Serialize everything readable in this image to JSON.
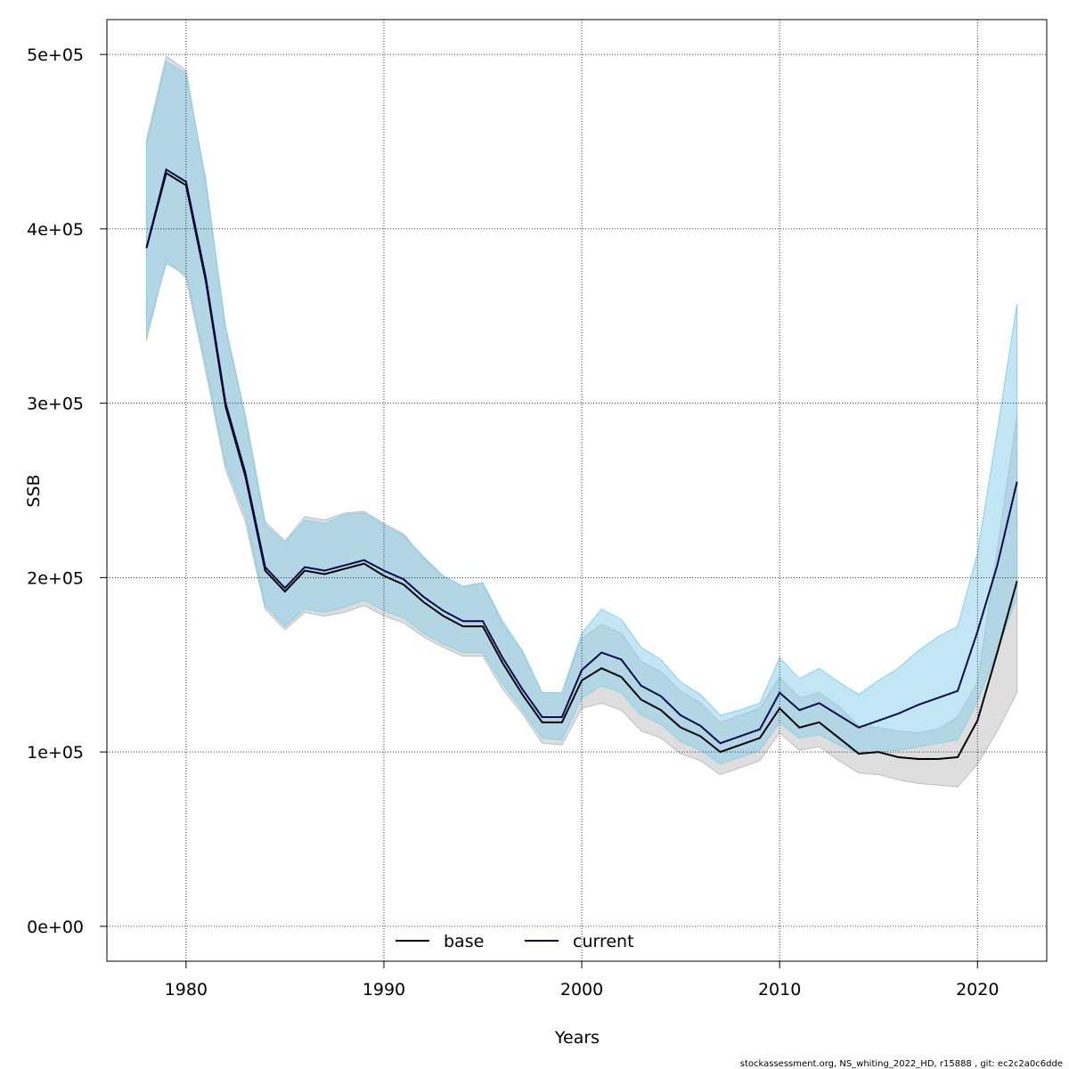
{
  "chart_data": {
    "type": "line",
    "xlabel": "Years",
    "ylabel": "SSB",
    "xlim": [
      1976,
      2023.5
    ],
    "ylim": [
      -20000,
      520000
    ],
    "xticks": [
      1980,
      1990,
      2000,
      2010,
      2020
    ],
    "yticks": [
      0,
      100000,
      200000,
      300000,
      400000,
      500000
    ],
    "ytick_labels": [
      "0e+00",
      "1e+05",
      "2e+05",
      "3e+05",
      "4e+05",
      "5e+05"
    ],
    "grid": true,
    "legend_position": "bottom",
    "x": [
      1978,
      1979,
      1980,
      1981,
      1982,
      1983,
      1984,
      1985,
      1986,
      1987,
      1988,
      1989,
      1990,
      1991,
      1992,
      1993,
      1994,
      1995,
      1996,
      1997,
      1998,
      1999,
      2000,
      2001,
      2002,
      2003,
      2004,
      2005,
      2006,
      2007,
      2008,
      2009,
      2010,
      2011,
      2012,
      2013,
      2014,
      2015,
      2016,
      2017,
      2018,
      2019,
      2020,
      2021,
      2022
    ],
    "series": [
      {
        "name": "base",
        "color": "#000000",
        "band_color": "#bebebe",
        "line_style": "solid",
        "values": [
          389000,
          432000,
          425000,
          370000,
          298000,
          258000,
          204000,
          192000,
          204000,
          202000,
          205000,
          208000,
          201000,
          196000,
          186000,
          178000,
          172000,
          172000,
          151000,
          133000,
          117000,
          117000,
          141000,
          148000,
          143000,
          130000,
          124000,
          114000,
          109000,
          100000,
          104000,
          108000,
          125000,
          114000,
          117000,
          108000,
          99000,
          100000,
          97000,
          96000,
          96000,
          97000,
          118000,
          157000,
          198000
        ],
        "lower": [
          336000,
          382000,
          372000,
          318000,
          262000,
          232000,
          182000,
          170000,
          180000,
          178000,
          180000,
          184000,
          178000,
          174000,
          166000,
          160000,
          155000,
          155000,
          136000,
          122000,
          105000,
          104000,
          125000,
          128000,
          124000,
          112000,
          108000,
          99000,
          95000,
          87000,
          91000,
          95000,
          111000,
          101000,
          103000,
          95000,
          88000,
          87000,
          84000,
          82000,
          81000,
          80000,
          93000,
          112000,
          134000
        ],
        "upper": [
          451000,
          499000,
          491000,
          426000,
          344000,
          293000,
          232000,
          221000,
          235000,
          233000,
          237000,
          238000,
          231000,
          225000,
          211000,
          201000,
          195000,
          197000,
          173000,
          157000,
          134000,
          134000,
          165000,
          173000,
          168000,
          152000,
          146000,
          135000,
          128000,
          117000,
          121000,
          125000,
          143000,
          131000,
          134000,
          126000,
          115000,
          114000,
          112000,
          111000,
          113000,
          120000,
          140000,
          216000,
          293000
        ]
      },
      {
        "name": "current",
        "color": "#00008b",
        "band_color": "#87ceeb",
        "line_style": "dotted",
        "values": [
          389000,
          434000,
          427000,
          372000,
          300000,
          260000,
          206000,
          194000,
          206000,
          204000,
          207000,
          210000,
          204000,
          199000,
          189000,
          181000,
          175000,
          175000,
          154000,
          136000,
          120000,
          120000,
          147000,
          157000,
          153000,
          138000,
          132000,
          121000,
          115000,
          105000,
          109000,
          113000,
          134000,
          124000,
          128000,
          121000,
          114000,
          118000,
          122000,
          127000,
          131000,
          135000,
          169000,
          207000,
          255000
        ],
        "lower": [
          340000,
          380000,
          374000,
          322000,
          265000,
          236000,
          184000,
          172000,
          182000,
          180000,
          183000,
          187000,
          181000,
          177000,
          168000,
          162000,
          157000,
          157000,
          139000,
          124000,
          108000,
          107000,
          131000,
          138000,
          134000,
          121000,
          116000,
          106000,
          101000,
          93000,
          97000,
          101000,
          117000,
          108000,
          110000,
          104000,
          99000,
          100000,
          101000,
          103000,
          105000,
          107000,
          129000,
          158000,
          189000
        ],
        "upper": [
          448000,
          496000,
          489000,
          428000,
          343000,
          292000,
          230000,
          220000,
          233000,
          231000,
          236000,
          237000,
          230000,
          224000,
          212000,
          201000,
          195000,
          197000,
          175000,
          158000,
          134000,
          134000,
          168000,
          182000,
          176000,
          160000,
          153000,
          140000,
          133000,
          121000,
          124000,
          128000,
          154000,
          142000,
          148000,
          140000,
          133000,
          141000,
          148000,
          158000,
          166000,
          172000,
          214000,
          284000,
          357000
        ]
      }
    ]
  },
  "footer": "stockassessment.org, NS_whiting_2022_HD, r15888 , git: ec2c2a0c6dde"
}
